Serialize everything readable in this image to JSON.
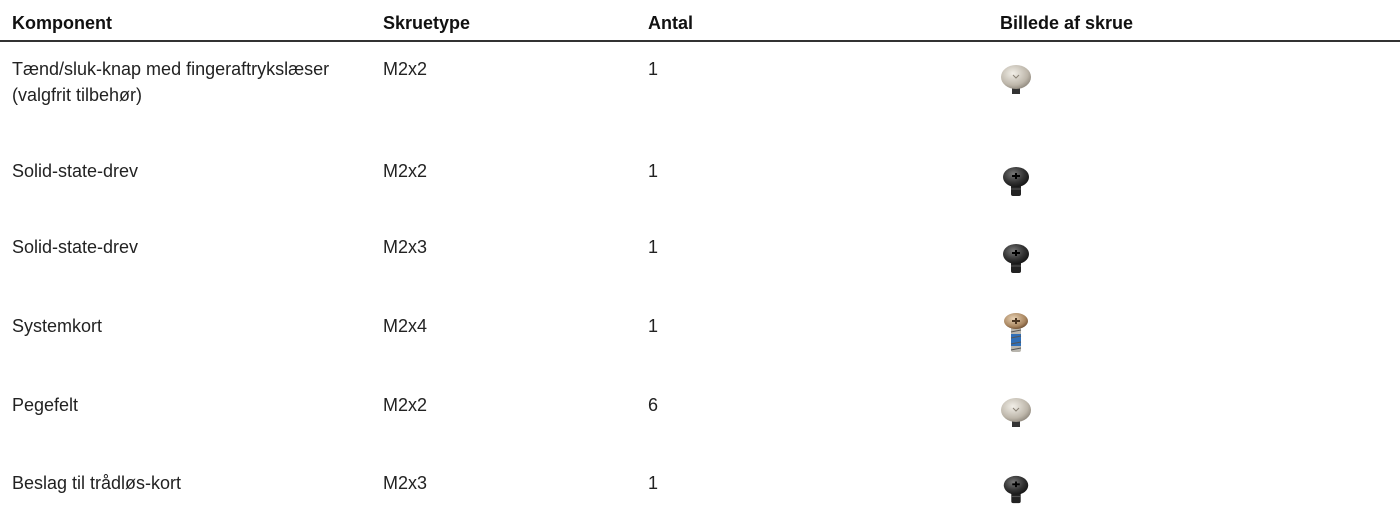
{
  "table": {
    "header": [
      "Komponent",
      "Skruetype",
      "Antal",
      "Billede af skrue"
    ],
    "rows": [
      [
        "Tænd/sluk-knap med fingeraftrykslæser (valgfrit tilbehør)",
        "M2x2",
        1
      ],
      [
        "Solid-state-drev",
        "M2x2",
        1
      ],
      [
        "Solid-state-drev",
        "M2x3",
        1
      ],
      [
        "Systemkort",
        "M2x4",
        1
      ],
      [
        "Pegefelt",
        "M2x2",
        6
      ],
      [
        "Beslag til trådløs-kort",
        "M2x3",
        1
      ]
    ]
  }
}
